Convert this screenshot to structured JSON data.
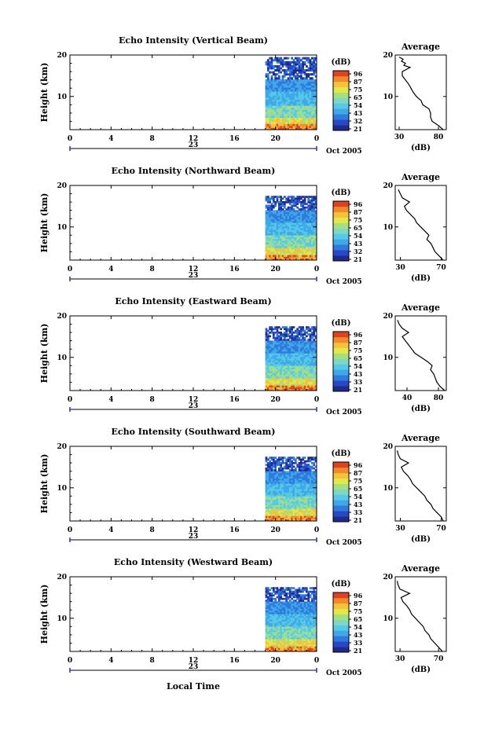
{
  "figure": {
    "xlabel": "Local Time",
    "date_label": "Oct 2005",
    "x_ticks": [
      "0",
      "4",
      "8",
      "12",
      "16",
      "20",
      "0"
    ],
    "day_label": "23",
    "y_label": "Height (km)",
    "y_ticks": [
      "20",
      "10"
    ],
    "avg_title": "Average",
    "unit_label": "(dB)",
    "colors": [
      "#1f2a8a",
      "#2749c9",
      "#2f7bdc",
      "#3fa8e8",
      "#55c9e6",
      "#7fd7c8",
      "#a6e07a",
      "#e3e84a",
      "#f6c23a",
      "#f08a2a",
      "#e0411f"
    ]
  },
  "chart_data": [
    {
      "type": "heatmap",
      "title": "Echo Intensity (Vertical Beam)",
      "xlabel": "Local Time",
      "ylabel": "Height (km)",
      "xlim": [
        0,
        24
      ],
      "ylim": [
        2,
        20
      ],
      "data_start_hour": 19,
      "data_top_km": 19.5,
      "colorbar": {
        "unit": "(dB)",
        "ticks": [
          "96",
          "87",
          "75",
          "65",
          "54",
          "43",
          "32",
          "21"
        ]
      },
      "average": {
        "title": "Average",
        "xlabel": "(dB)",
        "x_ticks": [
          "30",
          "80"
        ],
        "xlim": [
          25,
          90
        ],
        "y_ticks": [
          "20",
          "10"
        ],
        "profile": [
          [
            86,
            2
          ],
          [
            80,
            3
          ],
          [
            72,
            4
          ],
          [
            70,
            5
          ],
          [
            70,
            6
          ],
          [
            68,
            7
          ],
          [
            60,
            8
          ],
          [
            58,
            9
          ],
          [
            52,
            10
          ],
          [
            48,
            11
          ],
          [
            45,
            12
          ],
          [
            42,
            13
          ],
          [
            38,
            14
          ],
          [
            34,
            15
          ],
          [
            34,
            16
          ],
          [
            44,
            17
          ],
          [
            36,
            17.5
          ],
          [
            38,
            18
          ],
          [
            33,
            18.5
          ],
          [
            35,
            19
          ],
          [
            30,
            19.5
          ]
        ]
      }
    },
    {
      "type": "heatmap",
      "title": "Echo Intensity (Northward Beam)",
      "xlabel": "Local Time",
      "ylabel": "Height (km)",
      "xlim": [
        0,
        24
      ],
      "ylim": [
        2,
        20
      ],
      "data_start_hour": 19,
      "data_top_km": 17.5,
      "colorbar": {
        "unit": "(dB)",
        "ticks": [
          "96",
          "87",
          "75",
          "65",
          "54",
          "43",
          "32",
          "21"
        ]
      },
      "average": {
        "title": "Average",
        "xlabel": "(dB)",
        "x_ticks": [
          "30",
          "70"
        ],
        "xlim": [
          25,
          75
        ],
        "y_ticks": [
          "20",
          "10"
        ],
        "profile": [
          [
            72,
            2
          ],
          [
            68,
            3
          ],
          [
            64,
            4
          ],
          [
            62,
            5
          ],
          [
            60,
            6
          ],
          [
            56,
            7
          ],
          [
            58,
            8
          ],
          [
            54,
            9
          ],
          [
            50,
            10
          ],
          [
            46,
            11
          ],
          [
            44,
            12
          ],
          [
            40,
            13
          ],
          [
            36,
            14
          ],
          [
            34,
            15
          ],
          [
            39,
            16
          ],
          [
            32,
            17
          ],
          [
            30,
            18
          ],
          [
            28,
            19
          ]
        ]
      }
    },
    {
      "type": "heatmap",
      "title": "Echo Intensity (Eastward Beam)",
      "xlabel": "Local Time",
      "ylabel": "Height (km)",
      "xlim": [
        0,
        24
      ],
      "ylim": [
        2,
        20
      ],
      "data_start_hour": 19,
      "data_top_km": 17.5,
      "colorbar": {
        "unit": "(dB)",
        "ticks": [
          "96",
          "87",
          "75",
          "65",
          "54",
          "43",
          "33",
          "21"
        ]
      },
      "average": {
        "title": "Average",
        "xlabel": "(dB)",
        "x_ticks": [
          "40",
          "80"
        ],
        "xlim": [
          25,
          90
        ],
        "y_ticks": [
          "20",
          "10"
        ],
        "profile": [
          [
            88,
            2
          ],
          [
            82,
            3
          ],
          [
            78,
            4
          ],
          [
            76,
            5
          ],
          [
            74,
            6
          ],
          [
            70,
            7
          ],
          [
            72,
            8
          ],
          [
            66,
            9
          ],
          [
            58,
            10
          ],
          [
            50,
            11
          ],
          [
            46,
            12
          ],
          [
            42,
            13
          ],
          [
            38,
            14
          ],
          [
            34,
            15
          ],
          [
            42,
            16
          ],
          [
            34,
            17
          ],
          [
            30,
            18
          ],
          [
            28,
            19
          ]
        ]
      }
    },
    {
      "type": "heatmap",
      "title": "Echo Intensity (Southward Beam)",
      "xlabel": "Local Time",
      "ylabel": "Height (km)",
      "xlim": [
        0,
        24
      ],
      "ylim": [
        2,
        20
      ],
      "data_start_hour": 19,
      "data_top_km": 17.5,
      "colorbar": {
        "unit": "(dB)",
        "ticks": [
          "96",
          "87",
          "75",
          "65",
          "54",
          "43",
          "33",
          "21"
        ]
      },
      "average": {
        "title": "Average",
        "xlabel": "(dB)",
        "x_ticks": [
          "30",
          "70"
        ],
        "xlim": [
          25,
          75
        ],
        "y_ticks": [
          "20",
          "10"
        ],
        "profile": [
          [
            72,
            2
          ],
          [
            70,
            3
          ],
          [
            66,
            4
          ],
          [
            62,
            5
          ],
          [
            60,
            6
          ],
          [
            56,
            7
          ],
          [
            54,
            8
          ],
          [
            50,
            9
          ],
          [
            46,
            10
          ],
          [
            42,
            11
          ],
          [
            40,
            12
          ],
          [
            37,
            13
          ],
          [
            33,
            14
          ],
          [
            31,
            15
          ],
          [
            38,
            16
          ],
          [
            30,
            17
          ],
          [
            28,
            18
          ],
          [
            27,
            19
          ]
        ]
      }
    },
    {
      "type": "heatmap",
      "title": "Echo Intensity (Westward Beam)",
      "xlabel": "Local Time",
      "ylabel": "Height (km)",
      "xlim": [
        0,
        24
      ],
      "ylim": [
        2,
        20
      ],
      "data_start_hour": 19,
      "data_top_km": 17.5,
      "colorbar": {
        "unit": "(dB)",
        "ticks": [
          "96",
          "87",
          "75",
          "65",
          "54",
          "43",
          "33",
          "21"
        ]
      },
      "average": {
        "title": "Average",
        "xlabel": "(dB)",
        "x_ticks": [
          "30",
          "70"
        ],
        "xlim": [
          25,
          78
        ],
        "y_ticks": [
          "20",
          "10"
        ],
        "profile": [
          [
            74,
            2
          ],
          [
            70,
            3
          ],
          [
            66,
            4
          ],
          [
            62,
            5
          ],
          [
            60,
            6
          ],
          [
            56,
            7
          ],
          [
            54,
            8
          ],
          [
            50,
            9
          ],
          [
            46,
            10
          ],
          [
            42,
            11
          ],
          [
            40,
            12
          ],
          [
            37,
            13
          ],
          [
            33,
            14
          ],
          [
            31,
            15
          ],
          [
            40,
            16
          ],
          [
            30,
            17
          ],
          [
            28,
            18
          ],
          [
            27,
            19
          ]
        ]
      }
    }
  ]
}
